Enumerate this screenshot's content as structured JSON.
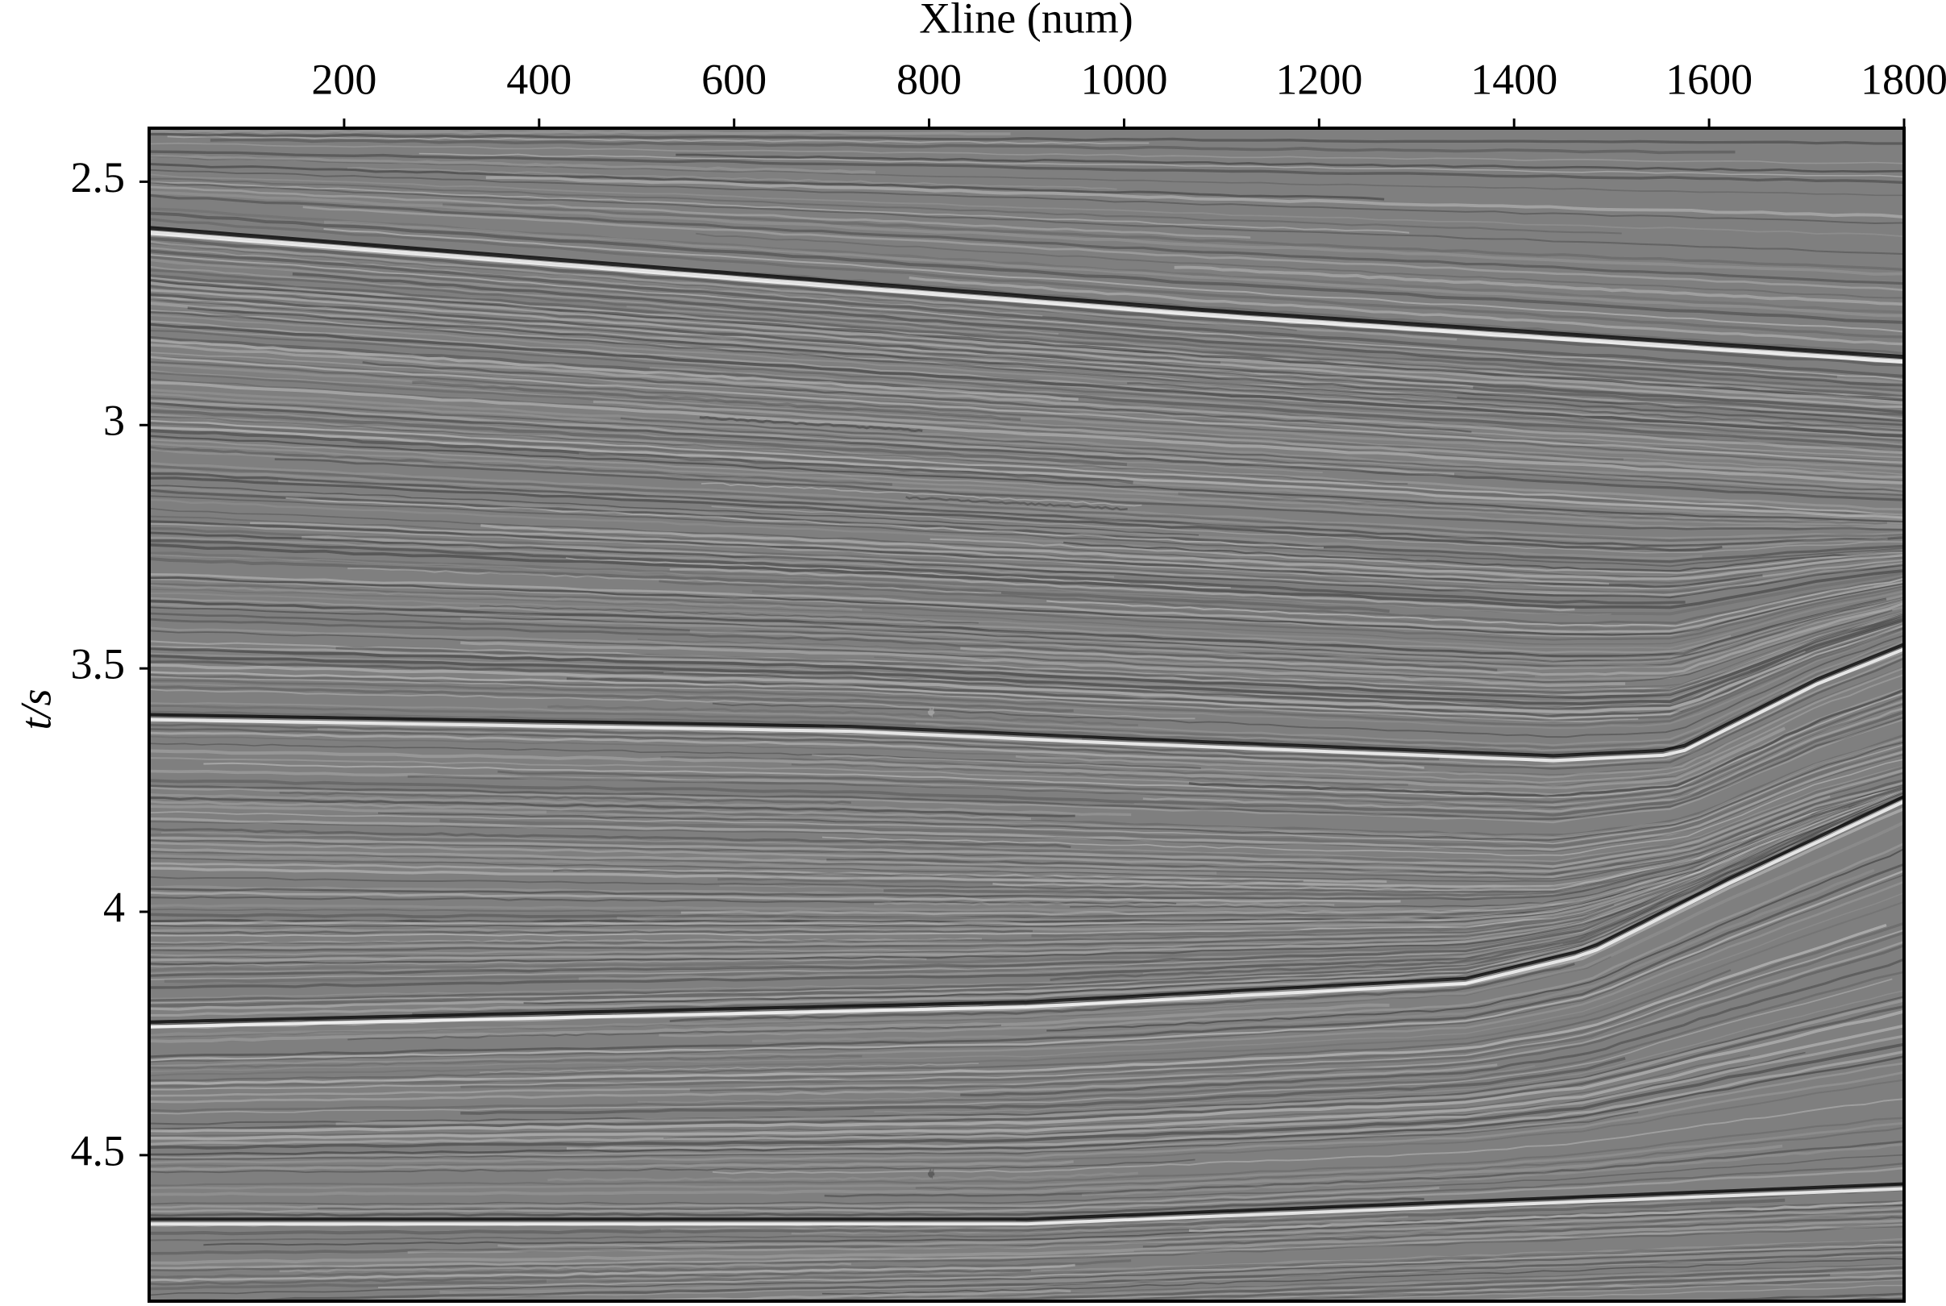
{
  "chart_data": {
    "type": "seismic-section",
    "x_label": "Xline (num)",
    "y_label": "t/s",
    "xlim": [
      0,
      1800
    ],
    "xticks": [
      200,
      400,
      600,
      800,
      1000,
      1200,
      1400,
      1600,
      1800
    ],
    "ylim": [
      2.39,
      4.8
    ],
    "yticks": [
      2.5,
      3.0,
      3.5,
      4.0,
      4.5
    ],
    "y_inverted": true,
    "x_axis_position": "top"
  }
}
